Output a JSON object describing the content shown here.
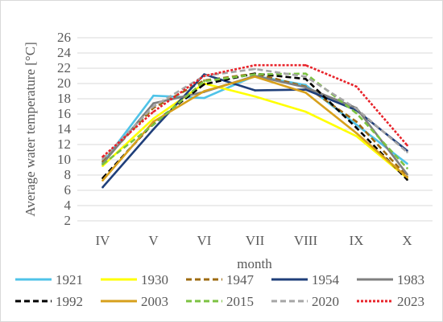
{
  "chart_data": {
    "type": "line",
    "title": "",
    "xlabel": "month",
    "ylabel": "Average water temperature [°C]",
    "categories": [
      "IV",
      "V",
      "VI",
      "VII",
      "VIII",
      "IX",
      "X"
    ],
    "ylim": [
      2,
      26
    ],
    "yticks": [
      2,
      4,
      6,
      8,
      10,
      12,
      14,
      16,
      18,
      20,
      22,
      24,
      26
    ],
    "grid": true,
    "legend_position": "bottom",
    "series": [
      {
        "name": "1921",
        "color": "#4fc3e8",
        "dash": "solid",
        "values": [
          9.6,
          18.4,
          18.1,
          21.0,
          19.8,
          14.6,
          9.5
        ]
      },
      {
        "name": "1930",
        "color": "#ffff00",
        "dash": "solid",
        "values": [
          9.2,
          15.4,
          20.0,
          18.3,
          16.3,
          13.1,
          7.6
        ]
      },
      {
        "name": "1947",
        "color": "#9e6b10",
        "dash": "dashed",
        "values": [
          9.8,
          16.8,
          20.4,
          21.3,
          19.6,
          15.0,
          7.8
        ]
      },
      {
        "name": "1954",
        "color": "#1f3f7a",
        "dash": "solid",
        "values": [
          6.4,
          14.0,
          21.2,
          19.1,
          19.2,
          16.5,
          11.2
        ]
      },
      {
        "name": "1983",
        "color": "#7f7f7f",
        "dash": "solid",
        "values": [
          9.5,
          17.4,
          18.9,
          21.0,
          19.5,
          16.8,
          8.1
        ]
      },
      {
        "name": "1992",
        "color": "#000000",
        "dash": "dashed",
        "values": [
          7.6,
          14.8,
          19.9,
          21.3,
          20.6,
          14.2,
          7.4
        ]
      },
      {
        "name": "2003",
        "color": "#d7a01c",
        "dash": "solid",
        "values": [
          7.3,
          15.0,
          19.0,
          20.9,
          18.8,
          13.5,
          7.7
        ]
      },
      {
        "name": "2015",
        "color": "#7cc242",
        "dash": "dashed",
        "values": [
          9.4,
          14.6,
          20.3,
          21.2,
          21.3,
          16.1,
          8.9
        ]
      },
      {
        "name": "2020",
        "color": "#a6a6a6",
        "dash": "dashed",
        "values": [
          10.1,
          17.0,
          21.0,
          21.9,
          20.9,
          16.7,
          11.0
        ]
      },
      {
        "name": "2023",
        "color": "#e8232a",
        "dash": "dotted",
        "values": [
          10.4,
          16.3,
          21.0,
          22.4,
          22.4,
          19.6,
          11.9
        ]
      }
    ]
  }
}
